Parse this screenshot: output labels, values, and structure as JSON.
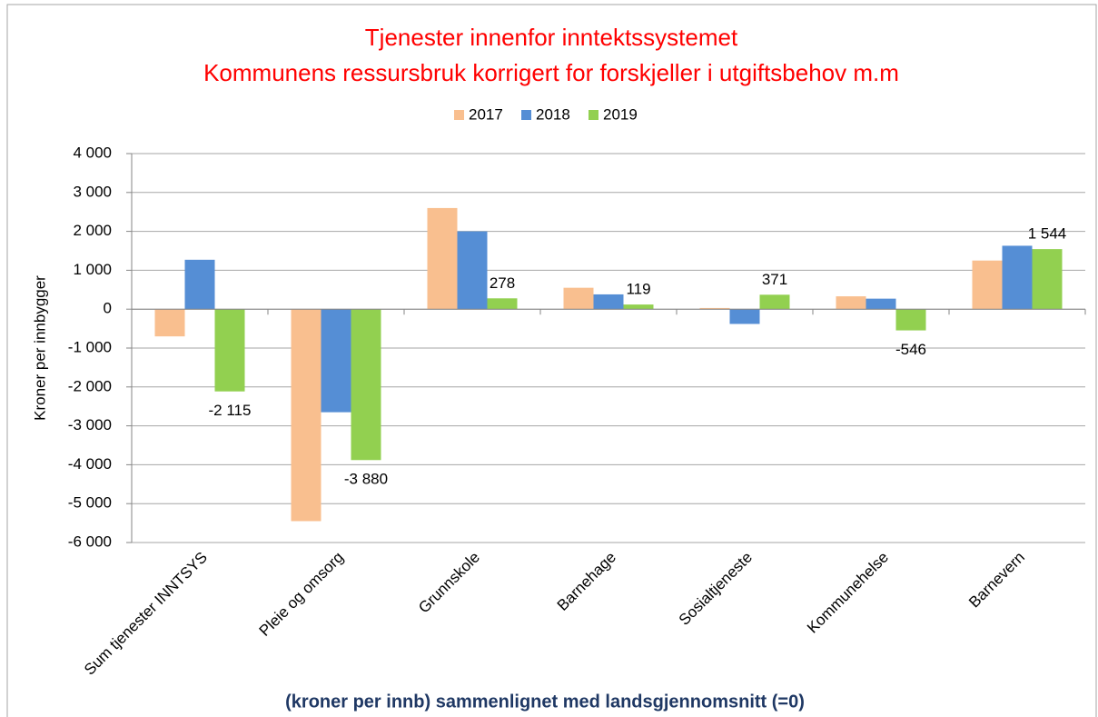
{
  "chart_data": {
    "type": "bar",
    "title": "Tjenester innenfor inntektssystemet",
    "subtitle": "Kommunens ressursbruk korrigert for  forskjeller i utgiftsbehov m.m",
    "x_label": "(kroner per innb) sammenlignet med landsgjennomsnitt (=0)",
    "y_label": "Kroner per innbygger",
    "categories": [
      "Sum tjenester INNTSYS",
      "Pleie og omsorg",
      "Grunnskole",
      "Barnehage",
      "Sosialtjeneste",
      "Kommunehelse",
      "Barnevern"
    ],
    "series": [
      {
        "name": "2017",
        "color": "#f9bf8f",
        "values": [
          -700,
          -5450,
          2600,
          550,
          30,
          330,
          1250
        ]
      },
      {
        "name": "2018",
        "color": "#558ed5",
        "values": [
          1270,
          -2650,
          2000,
          380,
          -380,
          270,
          1630
        ]
      },
      {
        "name": "2019",
        "color": "#92d050",
        "values": [
          -2115,
          -3880,
          278,
          119,
          371,
          -546,
          1544
        ],
        "value_labels": [
          "-2 115",
          "-3 880",
          "278",
          "119",
          "371",
          "-546",
          "1 544"
        ]
      }
    ],
    "ylim": [
      -6000,
      4000
    ],
    "yticks": [
      {
        "value": -6000,
        "label": "-6 000"
      },
      {
        "value": -5000,
        "label": "-5 000"
      },
      {
        "value": -4000,
        "label": "-4 000"
      },
      {
        "value": -3000,
        "label": "-3 000"
      },
      {
        "value": -2000,
        "label": "-2 000"
      },
      {
        "value": -1000,
        "label": "-1 000"
      },
      0,
      {
        "value": 1000,
        "label": "1 000"
      },
      {
        "value": 2000,
        "label": "2 000"
      },
      {
        "value": 3000,
        "label": "3 000"
      },
      {
        "value": 4000,
        "label": "4 000"
      }
    ],
    "grid": true,
    "legend": "top"
  }
}
